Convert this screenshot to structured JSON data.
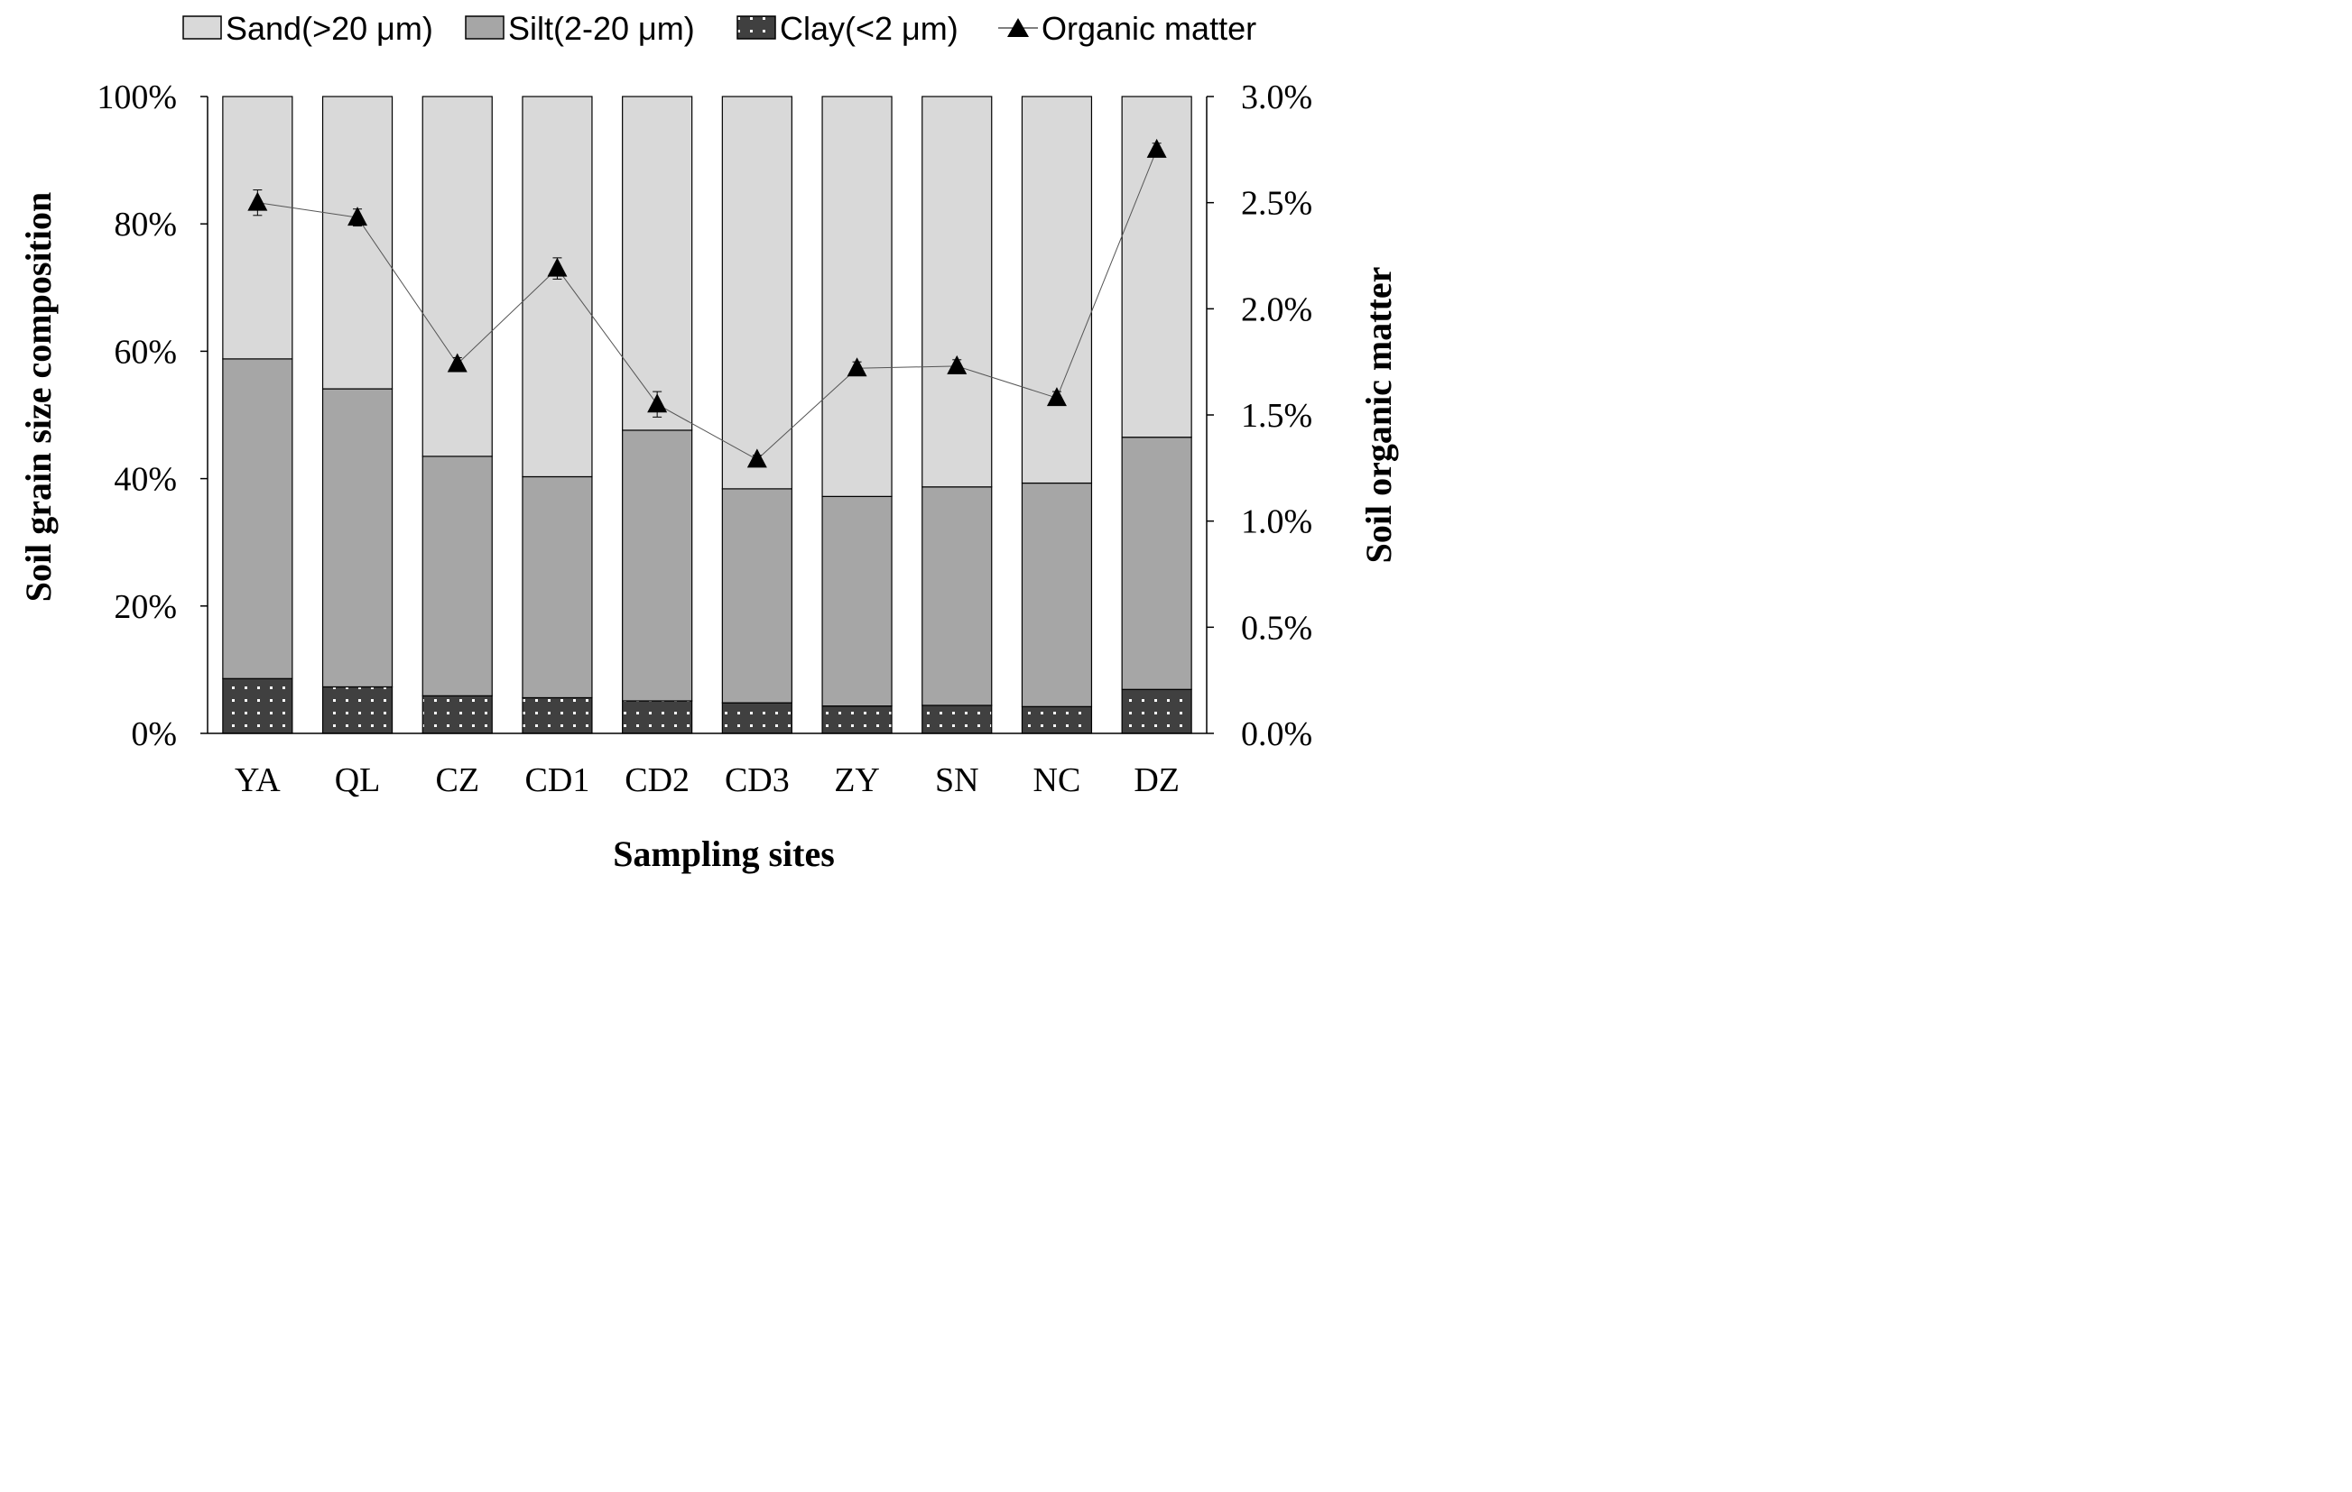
{
  "chart_data": {
    "type": "bar",
    "stacked": true,
    "categories": [
      "YA",
      "QL",
      "CZ",
      "CD1",
      "CD2",
      "CD3",
      "ZY",
      "SN",
      "NC",
      "DZ"
    ],
    "series": [
      {
        "name": "Clay(<2 μm)",
        "values": [
          8.6,
          7.3,
          5.9,
          5.6,
          5.1,
          4.8,
          4.3,
          4.4,
          4.2,
          6.9
        ],
        "color": "#404040",
        "pattern": "dots"
      },
      {
        "name": "Silt(2-20 μm)",
        "values": [
          50.2,
          46.8,
          37.6,
          34.7,
          42.5,
          33.6,
          32.9,
          34.3,
          35.1,
          39.6
        ],
        "color": "#a6a6a6"
      },
      {
        "name": "Sand(>20 μm)",
        "values": [
          41.2,
          45.9,
          56.5,
          59.7,
          52.4,
          61.6,
          62.8,
          61.3,
          60.7,
          53.5
        ],
        "color": "#d9d9d9"
      }
    ],
    "line_series": {
      "name": "Organic matter",
      "axis": "right",
      "values": [
        2.5,
        2.43,
        1.74,
        2.19,
        1.55,
        1.29,
        1.72,
        1.73,
        1.58,
        2.75
      ],
      "errors": [
        0.06,
        0.04,
        0.03,
        0.05,
        0.06,
        0.02,
        0.03,
        0.03,
        0.03,
        0.03
      ],
      "marker": "triangle",
      "color": "#000000"
    },
    "legend": {
      "position": "top",
      "items": [
        "Sand(>20 μm)",
        "Silt(2-20 μm)",
        "Clay(<2 μm)",
        "Organic matter"
      ]
    },
    "xlabel": "Sampling sites",
    "ylabel": "Soil grain size composition",
    "y2label": "Soil organic matter",
    "ylim": [
      0,
      100
    ],
    "y2lim": [
      0,
      3.0
    ],
    "yticks": [
      "0%",
      "20%",
      "40%",
      "60%",
      "80%",
      "100%"
    ],
    "y2ticks": [
      "0.0%",
      "0.5%",
      "1.0%",
      "1.5%",
      "2.0%",
      "2.5%",
      "3.0%"
    ],
    "grid": false
  }
}
